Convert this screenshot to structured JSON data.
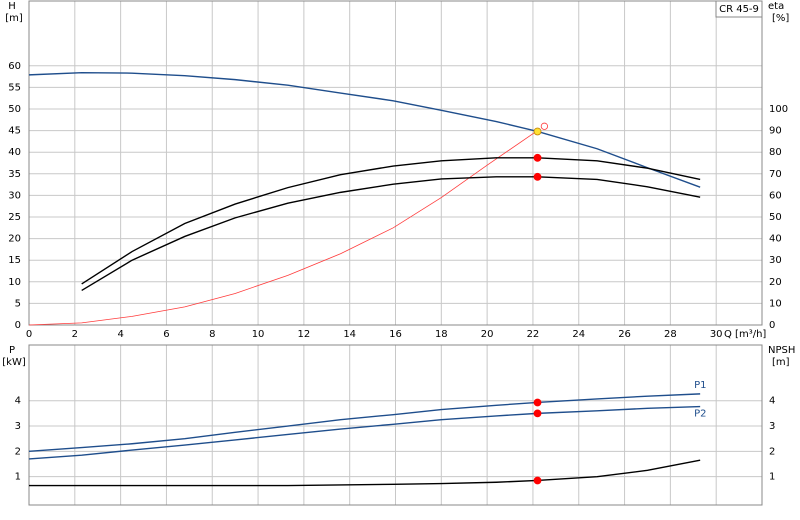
{
  "chart_data": [
    {
      "type": "line",
      "ylabel": "H",
      "yunit": "[m]",
      "y2label": "eta",
      "y2unit": "[%]",
      "xlabel": "Q [m³/h]",
      "box_label": "CR 45-9",
      "xlim": [
        0,
        32
      ],
      "xticks": [
        0,
        2,
        4,
        6,
        8,
        10,
        12,
        14,
        16,
        18,
        20,
        22,
        24,
        26,
        28,
        30
      ],
      "ylim": [
        0,
        75
      ],
      "yticks": [
        0,
        5,
        10,
        15,
        20,
        25,
        30,
        35,
        40,
        45,
        50,
        55,
        60
      ],
      "y2lim": [
        0,
        150
      ],
      "y2ticks": [
        0,
        10,
        20,
        30,
        40,
        50,
        60,
        70,
        80,
        90,
        100
      ],
      "grid": true,
      "series": [
        {
          "color": "#1f4e8c",
          "x": [
            0,
            2.3,
            4.5,
            6.8,
            9,
            11.3,
            13.6,
            15.9,
            18,
            20.4,
            22.2,
            24.8,
            27,
            29.3
          ],
          "values": [
            57.9,
            58.4,
            58.3,
            57.7,
            56.8,
            55.5,
            53.7,
            51.9,
            49.7,
            47.1,
            44.8,
            40.8,
            36.4,
            31.9
          ]
        },
        {
          "color": "#ff3b3b",
          "axis": "y2",
          "x": [
            0,
            2.3,
            4.5,
            6.8,
            9,
            11.3,
            13.6,
            15.9,
            18,
            20,
            22.2
          ],
          "values": [
            0,
            1,
            4,
            8.4,
            14.6,
            23,
            33,
            45,
            59,
            74,
            90
          ]
        },
        {
          "color": "#000000",
          "axis": "y2",
          "x": [
            2.3,
            4.5,
            6.8,
            9,
            11.3,
            13.6,
            15.9,
            18,
            20.4,
            22.2,
            24.8,
            27,
            29.3
          ],
          "values": [
            19,
            34,
            47,
            56,
            63.6,
            69.6,
            73.6,
            76,
            77.4,
            77.4,
            76,
            72.6,
            67.4
          ]
        },
        {
          "color": "#000000",
          "axis": "y2",
          "x": [
            2.3,
            4.5,
            6.8,
            9,
            11.3,
            13.6,
            15.9,
            18,
            20.4,
            22.2,
            24.8,
            27,
            29.3
          ],
          "values": [
            16,
            30,
            41,
            49.6,
            56.4,
            61.4,
            65.2,
            67.6,
            68.6,
            68.6,
            67.4,
            64,
            59.2
          ]
        }
      ],
      "points": [
        {
          "x": 22.2,
          "y": 44.8,
          "color": "#ffe033"
        },
        {
          "x": 22.5,
          "y": 92,
          "axis": "y2",
          "color": "#ff3b3b",
          "style": "open"
        },
        {
          "x": 22.2,
          "y": 77.4,
          "axis": "y2",
          "color": "#ff0000"
        },
        {
          "x": 22.2,
          "y": 68.6,
          "axis": "y2",
          "color": "#ff0000"
        }
      ]
    },
    {
      "type": "line",
      "ylabel": "P",
      "yunit": "[kW]",
      "y2label": "NPSH",
      "y2unit": "[m]",
      "xlim": [
        0,
        32
      ],
      "ylim": [
        0,
        6.2
      ],
      "yticks": [
        1,
        2,
        3,
        4
      ],
      "y2lim": [
        0,
        6.2
      ],
      "y2ticks": [
        1,
        2,
        3,
        4
      ],
      "grid": true,
      "series": [
        {
          "name": "P1",
          "color": "#1f4e8c",
          "x": [
            0,
            2.3,
            4.5,
            6.8,
            9,
            11.3,
            13.6,
            15.9,
            18,
            20.4,
            22.2,
            24.8,
            27,
            29.3
          ],
          "values": [
            2.0,
            2.15,
            2.3,
            2.5,
            2.75,
            3.0,
            3.25,
            3.45,
            3.65,
            3.82,
            3.93,
            4.07,
            4.18,
            4.27
          ]
        },
        {
          "name": "P2",
          "color": "#1f4e8c",
          "x": [
            0,
            2.3,
            4.5,
            6.8,
            9,
            11.3,
            13.6,
            15.9,
            18,
            20.4,
            22.2,
            24.8,
            27,
            29.3
          ],
          "values": [
            1.7,
            1.85,
            2.05,
            2.25,
            2.45,
            2.67,
            2.88,
            3.07,
            3.25,
            3.4,
            3.5,
            3.6,
            3.7,
            3.77
          ]
        },
        {
          "color": "#000000",
          "axis": "y2",
          "x": [
            0,
            11.3,
            15.9,
            18,
            20.4,
            22.2,
            24.8,
            27,
            29.3
          ],
          "values": [
            0.65,
            0.65,
            0.7,
            0.73,
            0.78,
            0.85,
            1.0,
            1.25,
            1.65
          ]
        }
      ],
      "points": [
        {
          "x": 22.2,
          "y": 3.93,
          "color": "#ff0000"
        },
        {
          "x": 22.2,
          "y": 3.5,
          "color": "#ff0000"
        },
        {
          "x": 22.2,
          "y": 0.85,
          "axis": "y2",
          "color": "#ff0000"
        }
      ]
    }
  ]
}
